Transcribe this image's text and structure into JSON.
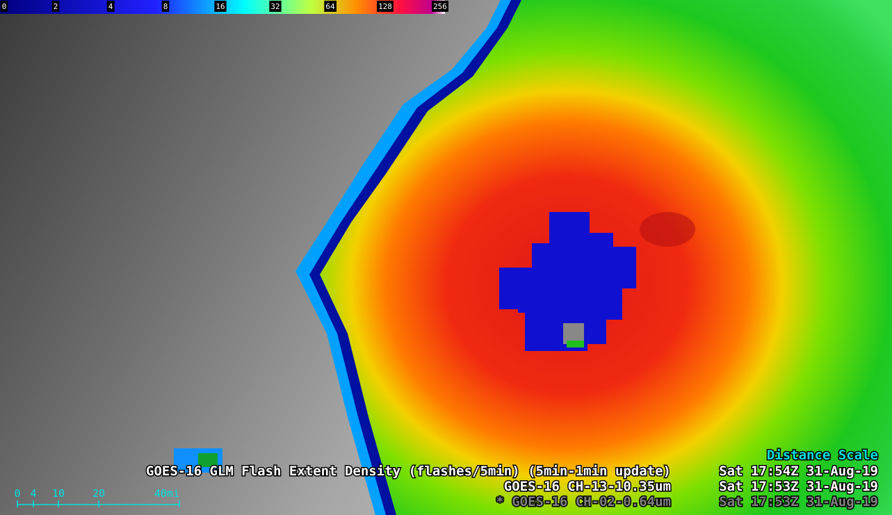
{
  "colorbar": {
    "labels": [
      "0",
      "2",
      "4",
      "8",
      "16",
      "32",
      "64",
      "128",
      "256"
    ]
  },
  "legend": {
    "title": "Distance Scale",
    "lines": [
      {
        "product": "GOES-16 GLM Flash Extent Density (flashes/5min) (5min-1min update)",
        "time": "Sat 17:54Z 31-Aug-19"
      },
      {
        "product": "GOES-16 CH-13-10.35um",
        "time": "Sat 17:53Z 31-Aug-19"
      },
      {
        "product": "* GOES-16 CH-02-0.64um",
        "time": "Sat 17:53Z 31-Aug-19"
      }
    ]
  },
  "distance_scale": {
    "labels": [
      "0",
      "4",
      "10",
      "20",
      "40mi"
    ]
  }
}
